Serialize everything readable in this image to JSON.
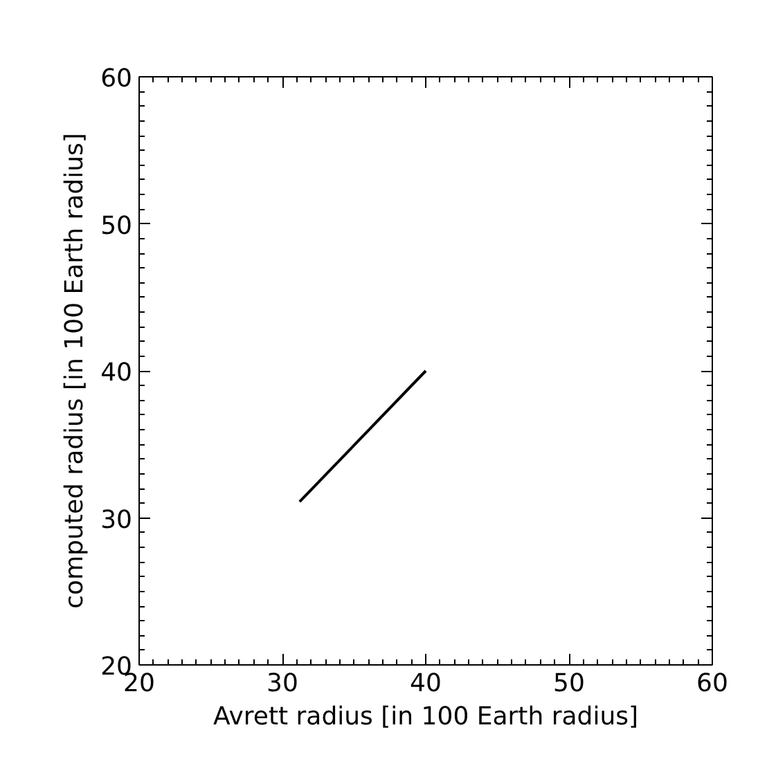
{
  "chart_data": {
    "type": "line",
    "xlabel": "Avrett radius [in 100 Earth radius]",
    "ylabel": "computed radius [in 100 Earth radius]",
    "x": [
      31.2,
      40
    ],
    "series": [
      {
        "color": "#000000",
        "values": [
          31.1,
          40
        ]
      }
    ],
    "xlim": [
      20,
      60
    ],
    "ylim": [
      20,
      60
    ],
    "xticks": [
      20,
      30,
      40,
      50,
      60
    ],
    "yticks": [
      20,
      30,
      40,
      50,
      60
    ],
    "grid": false,
    "marker": "none",
    "line_style": "solid"
  }
}
